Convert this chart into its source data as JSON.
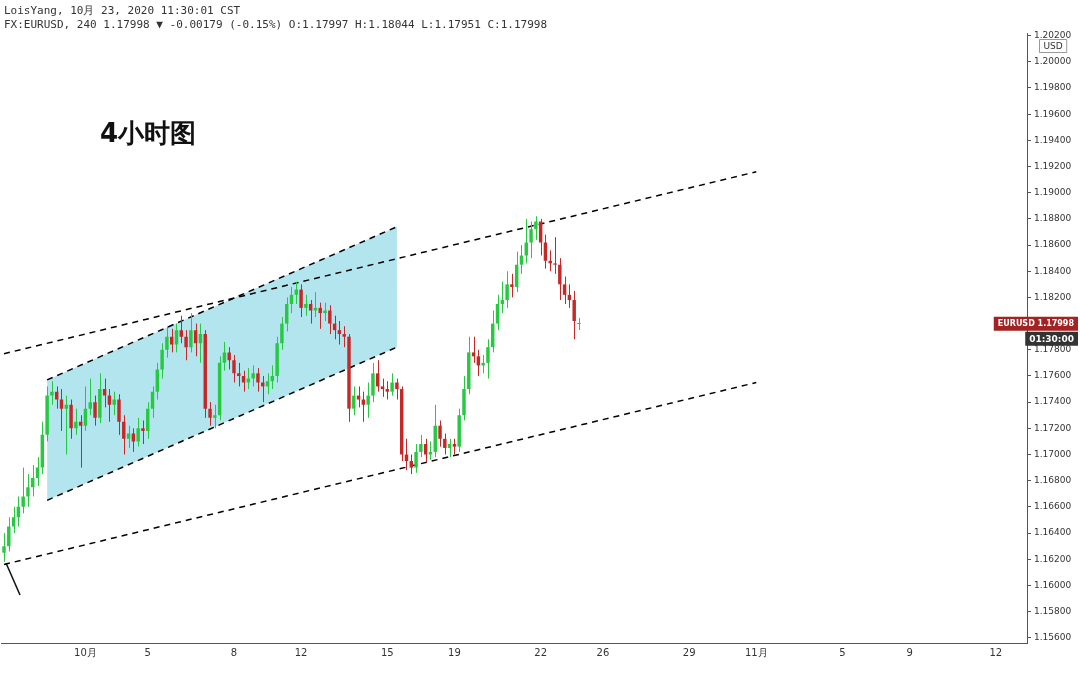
{
  "chart_data": {
    "type": "candlestick",
    "title": "4小时图",
    "subtitle": "LoisYang, 10月 23, 2020 11:30:01 CST",
    "annotations": [
      "FX:EURUSD, 240 1.17998 ▼ -0.00179 (-0.15%) O:1.17997 H:1.18044 L:1.17951 C:1.17998",
      "EURUSD 1.17998",
      "01:30:00",
      "USD"
    ],
    "categories": [
      null,
      null,
      null,
      null,
      null,
      null,
      null,
      null,
      null,
      null,
      null,
      null,
      null,
      null,
      null,
      null,
      null,
      "10月",
      null,
      null,
      null,
      null,
      null,
      null,
      null,
      null,
      null,
      null,
      null,
      null,
      "5",
      null,
      null,
      null,
      null,
      null,
      null,
      null,
      null,
      null,
      null,
      null,
      null,
      null,
      null,
      null,
      null,
      null,
      "8",
      null,
      null,
      null,
      null,
      null,
      null,
      null,
      null,
      null,
      null,
      null,
      null,
      null,
      "12",
      null,
      null,
      null,
      null,
      null,
      null,
      null,
      null,
      null,
      null,
      null,
      null,
      null,
      null,
      null,
      null,
      null,
      "15",
      null,
      null,
      null,
      null,
      null,
      null,
      null,
      null,
      null,
      null,
      null,
      null,
      null,
      "19",
      null,
      null,
      null,
      null,
      null,
      null,
      null,
      null,
      null,
      null,
      null,
      null,
      null,
      null,
      null,
      null,
      null,
      "22",
      null,
      null,
      null,
      null,
      null,
      null,
      null,
      null,
      null,
      null,
      null,
      null,
      "26",
      null,
      null,
      null,
      null,
      null,
      null,
      null,
      null,
      null,
      null,
      null,
      null,
      null,
      null,
      null,
      null,
      null,
      "29",
      null,
      null,
      null,
      null,
      null,
      null,
      null,
      null,
      null,
      null,
      null,
      null,
      null,
      "11月",
      null,
      null,
      null,
      null,
      null,
      null,
      null,
      null,
      null,
      null,
      null,
      null,
      null,
      null,
      null,
      null,
      null,
      "5",
      null,
      null,
      null,
      null,
      null,
      null,
      null,
      null,
      null,
      null,
      null,
      null,
      null,
      "9",
      null,
      null,
      null,
      null,
      null,
      null,
      null,
      null,
      null,
      null,
      null,
      null,
      null,
      null,
      null,
      null,
      null,
      "12",
      null,
      null,
      null,
      null,
      null,
      null
    ],
    "ohlc": [
      [
        1.1625,
        1.164,
        1.1618,
        1.163
      ],
      [
        1.163,
        1.1652,
        1.1626,
        1.1645
      ],
      [
        1.1645,
        1.166,
        1.164,
        1.1652
      ],
      [
        1.1652,
        1.1668,
        1.1645,
        1.166
      ],
      [
        1.166,
        1.169,
        1.1655,
        1.1668
      ],
      [
        1.1668,
        1.1685,
        1.166,
        1.1675
      ],
      [
        1.1675,
        1.1692,
        1.1668,
        1.1682
      ],
      [
        1.1682,
        1.1698,
        1.1676,
        1.169
      ],
      [
        1.169,
        1.1725,
        1.1685,
        1.1715
      ],
      [
        1.1715,
        1.1752,
        1.171,
        1.1745
      ],
      [
        1.1745,
        1.1756,
        1.1738,
        1.1748
      ],
      [
        1.1748,
        1.1752,
        1.1735,
        1.1742
      ],
      [
        1.1742,
        1.175,
        1.1718,
        1.1735
      ],
      [
        1.1735,
        1.1745,
        1.17,
        1.1738
      ],
      [
        1.1738,
        1.1742,
        1.1712,
        1.172
      ],
      [
        1.172,
        1.1735,
        1.1715,
        1.1725
      ],
      [
        1.1725,
        1.173,
        1.169,
        1.1722
      ],
      [
        1.1722,
        1.1752,
        1.1718,
        1.1735
      ],
      [
        1.1735,
        1.1758,
        1.173,
        1.174
      ],
      [
        1.174,
        1.1745,
        1.1722,
        1.1728
      ],
      [
        1.1728,
        1.1762,
        1.1724,
        1.175
      ],
      [
        1.175,
        1.1758,
        1.1736,
        1.1745
      ],
      [
        1.1745,
        1.175,
        1.1725,
        1.1738
      ],
      [
        1.1738,
        1.1748,
        1.173,
        1.1742
      ],
      [
        1.1742,
        1.1746,
        1.1715,
        1.1725
      ],
      [
        1.1725,
        1.173,
        1.17,
        1.1712
      ],
      [
        1.1712,
        1.1722,
        1.1705,
        1.1716
      ],
      [
        1.1716,
        1.172,
        1.1702,
        1.171
      ],
      [
        1.171,
        1.1728,
        1.1706,
        1.172
      ],
      [
        1.172,
        1.1726,
        1.1708,
        1.1718
      ],
      [
        1.1718,
        1.174,
        1.1712,
        1.1735
      ],
      [
        1.1735,
        1.1752,
        1.1728,
        1.1748
      ],
      [
        1.1748,
        1.177,
        1.1742,
        1.1765
      ],
      [
        1.1765,
        1.1785,
        1.1758,
        1.178
      ],
      [
        1.178,
        1.1798,
        1.1774,
        1.179
      ],
      [
        1.179,
        1.1796,
        1.1778,
        1.1784
      ],
      [
        1.1784,
        1.18,
        1.1778,
        1.1795
      ],
      [
        1.1795,
        1.1806,
        1.1785,
        1.179
      ],
      [
        1.179,
        1.1795,
        1.1772,
        1.1782
      ],
      [
        1.1782,
        1.1808,
        1.1778,
        1.1795
      ],
      [
        1.1795,
        1.18,
        1.1775,
        1.1785
      ],
      [
        1.1785,
        1.18,
        1.177,
        1.1792
      ],
      [
        1.1792,
        1.1795,
        1.1728,
        1.1735
      ],
      [
        1.1735,
        1.174,
        1.1722,
        1.1728
      ],
      [
        1.1728,
        1.1738,
        1.172,
        1.173
      ],
      [
        1.173,
        1.1775,
        1.1726,
        1.177
      ],
      [
        1.177,
        1.1786,
        1.1764,
        1.1778
      ],
      [
        1.1778,
        1.1782,
        1.1765,
        1.1772
      ],
      [
        1.1772,
        1.1776,
        1.1755,
        1.1762
      ],
      [
        1.1762,
        1.177,
        1.1752,
        1.176
      ],
      [
        1.176,
        1.1764,
        1.1748,
        1.1755
      ],
      [
        1.1755,
        1.1766,
        1.175,
        1.1758
      ],
      [
        1.1758,
        1.1768,
        1.1752,
        1.1762
      ],
      [
        1.1762,
        1.1766,
        1.1748,
        1.1755
      ],
      [
        1.1755,
        1.176,
        1.174,
        1.1752
      ],
      [
        1.1752,
        1.1762,
        1.1746,
        1.1756
      ],
      [
        1.1756,
        1.1768,
        1.175,
        1.176
      ],
      [
        1.176,
        1.179,
        1.1755,
        1.1785
      ],
      [
        1.1785,
        1.1805,
        1.178,
        1.18
      ],
      [
        1.18,
        1.182,
        1.1794,
        1.1815
      ],
      [
        1.1815,
        1.1828,
        1.1808,
        1.1822
      ],
      [
        1.1822,
        1.1832,
        1.1815,
        1.1826
      ],
      [
        1.1826,
        1.183,
        1.1805,
        1.1812
      ],
      [
        1.1812,
        1.1822,
        1.1806,
        1.1815
      ],
      [
        1.1815,
        1.1818,
        1.18,
        1.181
      ],
      [
        1.181,
        1.1824,
        1.1805,
        1.1812
      ],
      [
        1.1812,
        1.1816,
        1.1796,
        1.1808
      ],
      [
        1.1808,
        1.1816,
        1.1802,
        1.181
      ],
      [
        1.181,
        1.1814,
        1.1792,
        1.18
      ],
      [
        1.18,
        1.1806,
        1.1788,
        1.1795
      ],
      [
        1.1795,
        1.1802,
        1.1784,
        1.1792
      ],
      [
        1.1792,
        1.1798,
        1.1782,
        1.179
      ],
      [
        1.179,
        1.1792,
        1.1725,
        1.1735
      ],
      [
        1.1735,
        1.1752,
        1.173,
        1.1745
      ],
      [
        1.1745,
        1.1752,
        1.1736,
        1.1742
      ],
      [
        1.1742,
        1.1748,
        1.1725,
        1.1738
      ],
      [
        1.1738,
        1.1755,
        1.1728,
        1.1745
      ],
      [
        1.1745,
        1.177,
        1.174,
        1.1762
      ],
      [
        1.1762,
        1.1772,
        1.1748,
        1.1752
      ],
      [
        1.1752,
        1.1758,
        1.1744,
        1.175
      ],
      [
        1.175,
        1.1756,
        1.1742,
        1.1748
      ],
      [
        1.1748,
        1.1762,
        1.1745,
        1.1755
      ],
      [
        1.1755,
        1.1758,
        1.1742,
        1.175
      ],
      [
        1.175,
        1.1752,
        1.1695,
        1.17
      ],
      [
        1.17,
        1.1712,
        1.1688,
        1.1695
      ],
      [
        1.1695,
        1.17,
        1.1685,
        1.169
      ],
      [
        1.169,
        1.1708,
        1.1686,
        1.1702
      ],
      [
        1.1702,
        1.1715,
        1.1698,
        1.1708
      ],
      [
        1.1708,
        1.1712,
        1.1694,
        1.17
      ],
      [
        1.17,
        1.171,
        1.1696,
        1.1702
      ],
      [
        1.1702,
        1.1738,
        1.1698,
        1.1722
      ],
      [
        1.1722,
        1.1726,
        1.1706,
        1.1712
      ],
      [
        1.1712,
        1.1716,
        1.17,
        1.1705
      ],
      [
        1.1705,
        1.1712,
        1.1698,
        1.1708
      ],
      [
        1.1708,
        1.1712,
        1.17,
        1.1706
      ],
      [
        1.1706,
        1.1735,
        1.1702,
        1.173
      ],
      [
        1.173,
        1.176,
        1.1726,
        1.175
      ],
      [
        1.175,
        1.179,
        1.1746,
        1.1778
      ],
      [
        1.1778,
        1.179,
        1.177,
        1.1775
      ],
      [
        1.1775,
        1.178,
        1.176,
        1.1768
      ],
      [
        1.1768,
        1.1776,
        1.1762,
        1.177
      ],
      [
        1.177,
        1.1788,
        1.1758,
        1.1782
      ],
      [
        1.1782,
        1.181,
        1.1778,
        1.18
      ],
      [
        1.18,
        1.1822,
        1.1795,
        1.1815
      ],
      [
        1.1815,
        1.1832,
        1.1808,
        1.1818
      ],
      [
        1.1818,
        1.184,
        1.1812,
        1.183
      ],
      [
        1.183,
        1.1838,
        1.182,
        1.1828
      ],
      [
        1.1828,
        1.1855,
        1.1824,
        1.1845
      ],
      [
        1.1845,
        1.186,
        1.1838,
        1.1852
      ],
      [
        1.1852,
        1.188,
        1.1846,
        1.1862
      ],
      [
        1.1862,
        1.1878,
        1.185,
        1.1872
      ],
      [
        1.1872,
        1.1882,
        1.1864,
        1.1878
      ],
      [
        1.1878,
        1.188,
        1.1852,
        1.1862
      ],
      [
        1.1862,
        1.1868,
        1.1842,
        1.1848
      ],
      [
        1.1848,
        1.1856,
        1.184,
        1.1846
      ],
      [
        1.1846,
        1.1866,
        1.1838,
        1.1845
      ],
      [
        1.1845,
        1.185,
        1.1818,
        1.183
      ],
      [
        1.183,
        1.1836,
        1.1815,
        1.1822
      ],
      [
        1.1822,
        1.183,
        1.1812,
        1.1818
      ],
      [
        1.1818,
        1.1825,
        1.1788,
        1.1802
      ],
      [
        1.17997,
        1.18044,
        1.17951,
        1.17998
      ],
      null,
      null,
      null,
      null,
      null,
      null,
      null,
      null,
      null,
      null,
      null,
      null,
      null,
      null,
      null,
      null,
      null,
      null,
      null,
      null,
      null,
      null,
      null,
      null,
      null,
      null,
      null,
      null,
      null,
      null,
      null,
      null,
      null,
      null,
      null,
      null,
      null,
      null,
      null,
      null,
      null,
      null,
      null,
      null,
      null,
      null,
      null,
      null,
      null,
      null,
      null,
      null,
      null,
      null,
      null,
      null,
      null,
      null,
      null,
      null,
      null,
      null,
      null,
      null,
      null,
      null,
      null,
      null,
      null,
      null,
      null,
      null,
      null,
      null,
      null,
      null,
      null,
      null,
      null,
      null,
      null,
      null,
      null,
      null,
      null,
      null,
      null,
      null,
      null,
      null,
      null,
      null,
      null
    ],
    "colors": [
      "#26c940",
      "#26c940",
      "#26c940",
      "#26c940",
      "#26c940",
      "#26c940",
      "#26c940",
      "#26c940",
      "#26c940",
      "#26c940",
      "#26c940",
      "#c62828",
      "#c62828",
      "#26c940",
      "#c62828",
      "#26c940",
      "#c62828",
      "#26c940",
      "#26c940",
      "#c62828",
      "#26c940",
      "#c62828",
      "#c62828",
      "#26c940",
      "#c62828",
      "#c62828",
      "#26c940",
      "#c62828",
      "#26c940",
      "#c62828",
      "#26c940",
      "#26c940",
      "#26c940",
      "#26c940",
      "#26c940",
      "#c62828",
      "#26c940",
      "#c62828",
      "#c62828",
      "#26c940",
      "#c62828",
      "#26c940",
      "#c62828",
      "#c62828",
      "#26c940",
      "#26c940",
      "#26c940",
      "#c62828",
      "#c62828",
      "#c62828",
      "#c62828",
      "#26c940",
      "#26c940",
      "#c62828",
      "#c62828",
      "#26c940",
      "#26c940",
      "#26c940",
      "#26c940",
      "#26c940",
      "#26c940",
      "#26c940",
      "#c62828",
      "#26c940",
      "#c62828",
      "#26c940",
      "#c62828",
      "#26c940",
      "#c62828",
      "#c62828",
      "#c62828",
      "#c62828",
      "#c62828",
      "#26c940",
      "#c62828",
      "#c62828",
      "#26c940",
      "#26c940",
      "#c62828",
      "#c62828",
      "#c62828",
      "#26c940",
      "#c62828",
      "#c62828",
      "#c62828",
      "#c62828",
      "#26c940",
      "#26c940",
      "#c62828",
      "#26c940",
      "#26c940",
      "#c62828",
      "#c62828",
      "#26c940",
      "#c62828",
      "#26c940",
      "#26c940",
      "#26c940",
      "#c62828",
      "#c62828",
      "#26c940",
      "#26c940",
      "#26c940",
      "#26c940",
      "#26c940",
      "#26c940",
      "#c62828",
      "#26c940",
      "#26c940",
      "#26c940",
      "#26c940",
      "#26c940",
      "#c62828",
      "#c62828",
      "#c62828",
      "#c62828",
      "#c62828",
      "#c62828",
      "#c62828",
      "#c62828",
      "#26c940",
      null,
      null,
      null,
      null,
      null,
      null,
      null,
      null,
      null,
      null,
      null,
      null,
      null,
      null,
      null,
      null,
      null,
      null,
      null,
      null,
      null,
      null,
      null,
      null,
      null,
      null,
      null,
      null,
      null,
      null,
      null,
      null,
      null,
      null,
      null,
      null,
      null,
      null,
      null,
      null,
      null,
      null,
      null,
      null,
      null,
      null,
      null,
      null,
      null,
      null,
      null,
      null,
      null,
      null,
      null,
      null,
      null,
      null,
      null,
      null,
      null,
      null,
      null,
      null,
      null,
      null,
      null,
      null,
      null,
      null,
      null,
      null,
      null,
      null,
      null,
      null,
      null,
      null,
      null,
      null,
      null,
      null,
      null,
      null,
      null,
      null,
      null,
      null,
      null,
      null,
      null,
      null,
      null
    ],
    "series": [
      {
        "type": "line",
        "color": "#000000",
        "values": [
          null,
          null,
          null,
          null,
          null,
          null,
          null,
          null,
          null,
          1.1757,
          null,
          null,
          null,
          null,
          null,
          null,
          null,
          null,
          null,
          null,
          null,
          null,
          null,
          null,
          null,
          null,
          null,
          null,
          null,
          null,
          null,
          null,
          null,
          null,
          null,
          null,
          null,
          null,
          null,
          null,
          null,
          null,
          null,
          null,
          null,
          null,
          null,
          null,
          null,
          null,
          null,
          null,
          null,
          null,
          null,
          null,
          null,
          null,
          null,
          null,
          null,
          null,
          null,
          null,
          null,
          null,
          null,
          null,
          null,
          null,
          null,
          null,
          null,
          null,
          null,
          null,
          null,
          null,
          null,
          null,
          null,
          null,
          1.1874,
          null,
          null,
          null,
          null,
          null,
          null,
          null,
          null,
          null,
          null,
          null,
          null,
          null,
          null,
          null,
          null,
          null,
          null,
          null,
          null,
          null,
          null,
          null,
          null,
          null,
          null,
          null,
          null,
          null,
          null,
          null,
          null,
          null,
          null,
          null,
          null,
          null,
          null,
          null,
          null,
          null,
          null,
          null,
          null,
          null,
          null,
          null,
          null,
          null,
          null,
          null,
          null,
          null,
          null,
          null,
          null,
          null,
          null,
          null,
          null,
          null,
          null,
          null,
          null,
          null,
          null,
          null,
          null,
          null,
          null,
          null,
          null,
          null,
          null,
          null,
          null,
          null,
          null,
          null,
          null,
          null,
          null,
          null,
          null,
          null,
          null,
          null,
          null,
          null,
          null,
          null,
          null,
          null,
          null,
          null,
          null,
          null,
          null,
          null,
          null,
          null,
          null,
          null,
          null,
          null,
          null,
          null,
          null,
          null,
          null,
          null,
          null,
          null,
          null,
          null,
          null,
          null,
          null,
          null,
          null,
          null,
          null,
          null,
          null,
          null,
          null,
          null,
          null,
          null,
          null,
          null
        ]
      },
      {
        "type": "line",
        "color": "#000000",
        "values": [
          null,
          null,
          null,
          null,
          null,
          null,
          null,
          null,
          null,
          1.1665,
          null,
          null,
          null,
          null,
          null,
          null,
          null,
          null,
          null,
          null,
          null,
          null,
          null,
          null,
          null,
          null,
          null,
          null,
          null,
          null,
          null,
          null,
          null,
          null,
          null,
          null,
          null,
          null,
          null,
          null,
          null,
          null,
          null,
          null,
          null,
          null,
          null,
          null,
          null,
          null,
          null,
          null,
          null,
          null,
          null,
          null,
          null,
          null,
          null,
          null,
          null,
          null,
          null,
          null,
          null,
          null,
          null,
          null,
          null,
          null,
          null,
          null,
          null,
          null,
          null,
          null,
          null,
          null,
          null,
          null,
          null,
          null,
          1.1782,
          null,
          null,
          null,
          null,
          null,
          null,
          null,
          null,
          null,
          null,
          null,
          null,
          null,
          null,
          null,
          null,
          null,
          null,
          null,
          null,
          null,
          null,
          null,
          null,
          null,
          null,
          null,
          null,
          null,
          null,
          null,
          null,
          null,
          null,
          null,
          null,
          null,
          null,
          null,
          null,
          null,
          null,
          null,
          null,
          null,
          null,
          null,
          null,
          null,
          null,
          null,
          null,
          null,
          null,
          null,
          null,
          null,
          null,
          null,
          null,
          null,
          null,
          null,
          null,
          null,
          null,
          null,
          null,
          null,
          null,
          null,
          null,
          null,
          null,
          null,
          null,
          null,
          null,
          null,
          null,
          null,
          null,
          null,
          null,
          null,
          null,
          null,
          null,
          null,
          null,
          null,
          null,
          null,
          null,
          null,
          null,
          null,
          null,
          null,
          null,
          null,
          null,
          null,
          null,
          null,
          null,
          null,
          null,
          null,
          null,
          null,
          null,
          null,
          null,
          null,
          null,
          null,
          null,
          null,
          null,
          null,
          null,
          null,
          null,
          null,
          null,
          null,
          null,
          null,
          null,
          null
        ]
      },
      {
        "type": "line",
        "color": "#000000",
        "values": [
          1.1777,
          null,
          null,
          null,
          null,
          null,
          null,
          null,
          null,
          null,
          null,
          null,
          null,
          null,
          null,
          null,
          null,
          null,
          null,
          null,
          null,
          null,
          null,
          null,
          null,
          null,
          null,
          null,
          null,
          null,
          null,
          null,
          null,
          null,
          null,
          null,
          null,
          null,
          null,
          null,
          null,
          null,
          null,
          null,
          null,
          null,
          null,
          null,
          null,
          null,
          null,
          null,
          null,
          null,
          null,
          null,
          null,
          null,
          null,
          null,
          null,
          null,
          null,
          null,
          null,
          null,
          null,
          null,
          null,
          null,
          null,
          null,
          null,
          null,
          null,
          null,
          null,
          null,
          null,
          null,
          null,
          null,
          null,
          null,
          null,
          null,
          null,
          null,
          null,
          null,
          null,
          null,
          null,
          null,
          null,
          null,
          null,
          null,
          null,
          null,
          null,
          null,
          null,
          null,
          null,
          null,
          null,
          null,
          null,
          null,
          null,
          null,
          null,
          null,
          null,
          null,
          null,
          null,
          null,
          null,
          null,
          null,
          null,
          null,
          null,
          null,
          null,
          null,
          null,
          null,
          null,
          null,
          null,
          null,
          null,
          null,
          null,
          null,
          null,
          null,
          null,
          null,
          null,
          null,
          null,
          null,
          null,
          null,
          null,
          null,
          null,
          null,
          null,
          null,
          null,
          null,
          null,
          1.1916,
          null,
          null,
          null,
          null,
          null,
          null,
          null,
          null,
          null,
          null,
          null,
          null,
          null,
          null,
          null,
          null,
          null,
          null,
          null,
          null,
          null,
          null,
          null,
          null,
          null,
          null,
          null,
          null,
          null,
          null,
          null,
          null,
          null,
          null,
          null,
          null,
          null,
          null,
          null,
          null,
          null,
          null,
          null,
          null,
          null,
          null,
          null,
          null,
          null,
          null,
          null,
          null,
          null,
          null,
          null,
          null
        ]
      },
      {
        "type": "line",
        "color": "#000000",
        "values": [
          1.1616,
          null,
          null,
          null,
          null,
          null,
          null,
          null,
          null,
          null,
          null,
          null,
          null,
          null,
          null,
          null,
          null,
          null,
          null,
          null,
          null,
          null,
          null,
          null,
          null,
          null,
          null,
          null,
          null,
          null,
          null,
          null,
          null,
          null,
          null,
          null,
          null,
          null,
          null,
          null,
          null,
          null,
          null,
          null,
          null,
          null,
          null,
          null,
          null,
          null,
          null,
          null,
          null,
          null,
          null,
          null,
          null,
          null,
          null,
          null,
          null,
          null,
          null,
          null,
          null,
          null,
          null,
          null,
          null,
          null,
          null,
          null,
          null,
          null,
          null,
          null,
          null,
          null,
          null,
          null,
          null,
          null,
          null,
          null,
          null,
          null,
          null,
          null,
          null,
          null,
          null,
          null,
          null,
          null,
          null,
          null,
          null,
          null,
          null,
          null,
          null,
          null,
          null,
          null,
          null,
          null,
          null,
          null,
          null,
          null,
          null,
          null,
          null,
          null,
          null,
          null,
          null,
          null,
          null,
          null,
          null,
          null,
          null,
          null,
          null,
          null,
          null,
          null,
          null,
          null,
          null,
          null,
          null,
          null,
          null,
          null,
          null,
          null,
          null,
          null,
          null,
          null,
          null,
          null,
          null,
          null,
          null,
          null,
          null,
          null,
          null,
          null,
          null,
          null,
          null,
          null,
          null,
          1.1755,
          null,
          null,
          null,
          null,
          null,
          null,
          null,
          null,
          null,
          null,
          null,
          null,
          null,
          null,
          null,
          null,
          null,
          null,
          null,
          null,
          null,
          null,
          null,
          null,
          null,
          null,
          null,
          null,
          null,
          null,
          null,
          null,
          null,
          null,
          null,
          null,
          null,
          null,
          null,
          null,
          null,
          null,
          null,
          null,
          null,
          null,
          null,
          null,
          null,
          null,
          null,
          null,
          null,
          null,
          null,
          null
        ]
      }
    ],
    "line_style": "dashed",
    "ylim": [
      1.1556,
      1.2022
    ],
    "yticks": [
      {
        "value": 1.156,
        "label": "1.15600"
      },
      {
        "value": 1.158,
        "label": "1.15800"
      },
      {
        "value": 1.16,
        "label": "1.16000"
      },
      {
        "value": 1.162,
        "label": "1.16200"
      },
      {
        "value": 1.164,
        "label": "1.16400"
      },
      {
        "value": 1.166,
        "label": "1.16600"
      },
      {
        "value": 1.168,
        "label": "1.16800"
      },
      {
        "value": 1.17,
        "label": "1.17000"
      },
      {
        "value": 1.172,
        "label": "1.17200"
      },
      {
        "value": 1.174,
        "label": "1.17400"
      },
      {
        "value": 1.176,
        "label": "1.17600"
      },
      {
        "value": 1.178,
        "label": "1.17800"
      },
      {
        "value": 1.18,
        "label": null
      },
      {
        "value": 1.182,
        "label": "1.18200"
      },
      {
        "value": 1.184,
        "label": "1.18400"
      },
      {
        "value": 1.186,
        "label": "1.18600"
      },
      {
        "value": 1.188,
        "label": "1.18800"
      },
      {
        "value": 1.19,
        "label": "1.19000"
      },
      {
        "value": 1.192,
        "label": "1.19200"
      },
      {
        "value": 1.194,
        "label": "1.19400"
      },
      {
        "value": 1.196,
        "label": "1.19600"
      },
      {
        "value": 1.198,
        "label": "1.19800"
      },
      {
        "value": 1.2,
        "label": "1.20000"
      },
      {
        "value": 1.202,
        "label": "1.20200"
      }
    ]
  }
}
